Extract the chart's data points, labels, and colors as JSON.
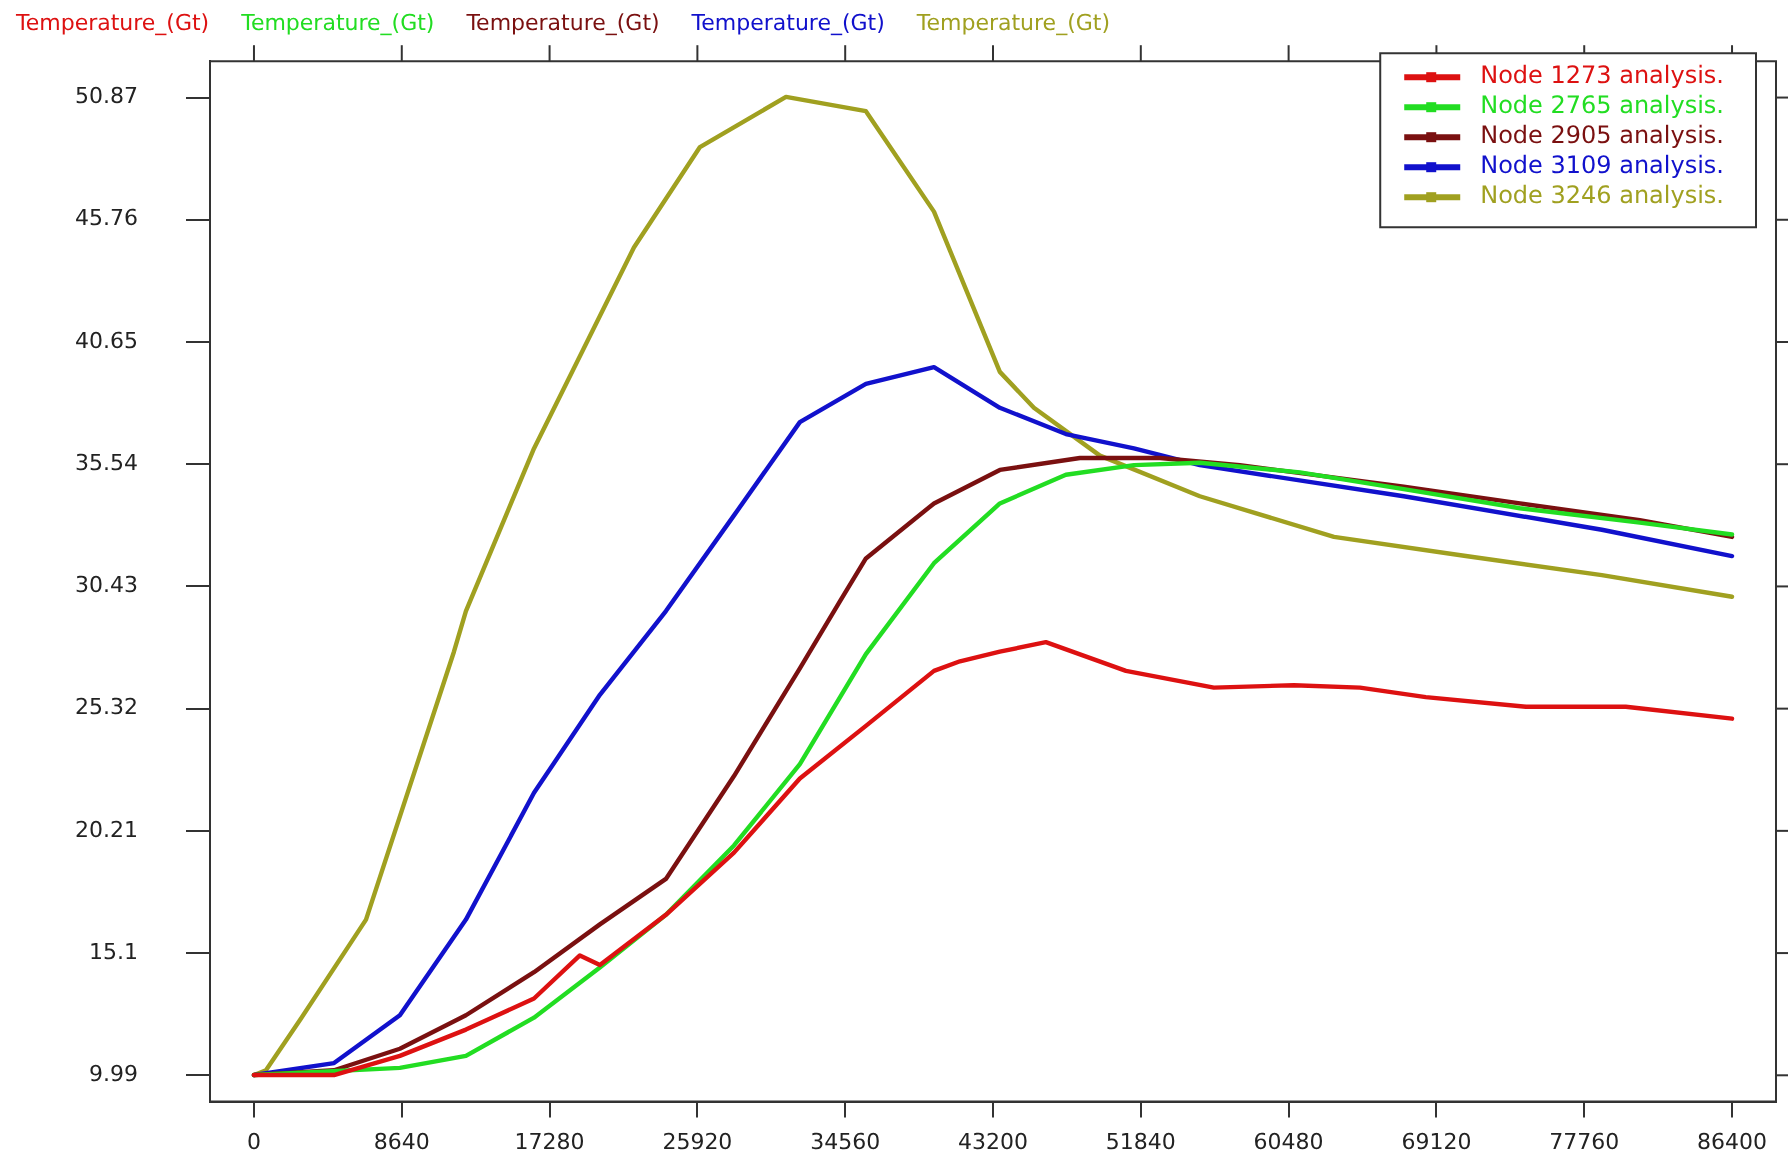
{
  "chart_data": {
    "type": "line",
    "annotations": [
      "Temperature_(Gt)",
      "Temperature_(Gt)",
      "Temperature_(Gt)",
      "Temperature_(Gt)",
      "Temperature_(Gt)"
    ],
    "series": [
      {
        "name": "Node 1273 analysis.",
        "color": "#dd1111",
        "x": [
          0,
          4680,
          8530,
          12390,
          16370,
          19050,
          20220,
          24080,
          28060,
          31910,
          35770,
          39750,
          41270,
          43600,
          46290,
          50970,
          56110,
          60790,
          64650,
          68500,
          74350,
          80190,
          86400
        ],
        "values": [
          10.0,
          10.0,
          10.8,
          11.9,
          13.2,
          15.0,
          14.6,
          16.7,
          19.3,
          22.4,
          24.6,
          26.9,
          27.3,
          27.7,
          28.1,
          26.9,
          26.2,
          26.3,
          26.2,
          25.8,
          25.4,
          25.4,
          24.9
        ]
      },
      {
        "name": "Node 2765 analysis.",
        "color": "#22dd22",
        "x": [
          0,
          8530,
          12390,
          16370,
          20220,
          24080,
          28060,
          31910,
          35770,
          39750,
          43600,
          47460,
          51440,
          55290,
          61140,
          67210,
          74000,
          81010,
          86400
        ],
        "values": [
          10.0,
          10.3,
          10.8,
          12.4,
          14.5,
          16.7,
          19.6,
          23.0,
          27.6,
          31.4,
          33.9,
          35.1,
          35.5,
          35.6,
          35.2,
          34.5,
          33.7,
          33.1,
          32.6
        ]
      },
      {
        "name": "Node 2905 analysis.",
        "color": "#7a1010",
        "x": [
          0,
          4680,
          8530,
          12390,
          16370,
          20220,
          24080,
          28060,
          31910,
          34250,
          35770,
          39750,
          43600,
          48280,
          52960,
          57630,
          67210,
          74000,
          81010,
          86400
        ],
        "values": [
          10.0,
          10.2,
          11.1,
          12.5,
          14.3,
          16.3,
          18.2,
          22.5,
          27.0,
          29.8,
          31.6,
          33.9,
          35.3,
          35.8,
          35.8,
          35.5,
          34.6,
          33.9,
          33.2,
          32.5
        ]
      },
      {
        "name": "Node 3109 analysis.",
        "color": "#1111cc",
        "x": [
          0,
          4680,
          8530,
          12390,
          16370,
          20220,
          24080,
          28060,
          31910,
          35770,
          39750,
          43600,
          47460,
          51440,
          55290,
          67210,
          78790,
          86400
        ],
        "values": [
          10.0,
          10.5,
          12.5,
          16.5,
          21.8,
          25.9,
          29.4,
          33.4,
          37.3,
          38.9,
          39.6,
          37.9,
          36.8,
          36.2,
          35.5,
          34.2,
          32.8,
          31.7
        ]
      },
      {
        "name": "Node 3246 analysis.",
        "color": "#a0a020",
        "x": [
          0,
          700,
          2690,
          6550,
          11690,
          12390,
          16370,
          22210,
          26070,
          31100,
          35770,
          39750,
          43600,
          45590,
          49450,
          55290,
          63130,
          70840,
          78790,
          86400
        ],
        "values": [
          10.0,
          10.2,
          12.3,
          16.5,
          27.7,
          29.4,
          36.2,
          44.6,
          48.8,
          50.9,
          50.3,
          46.1,
          39.4,
          37.9,
          35.9,
          34.2,
          32.5,
          31.7,
          30.9,
          30.0
        ]
      }
    ],
    "xlim": [
      -2570,
      88970
    ],
    "xticks": [
      0,
      8640,
      17280,
      25920,
      34560,
      43200,
      51840,
      60480,
      69120,
      77760,
      86400
    ],
    "ylim": [
      8.89,
      52.39
    ],
    "yticks": [
      9.99,
      15.1,
      20.21,
      25.32,
      30.43,
      35.54,
      40.65,
      45.76,
      50.87
    ],
    "grid": false,
    "legend": "top right",
    "marker": "none",
    "line_style": "solid"
  }
}
